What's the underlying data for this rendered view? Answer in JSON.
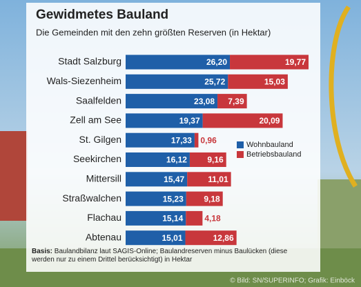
{
  "chart_data": {
    "type": "stacked_bar",
    "orientation": "horizontal",
    "title": "Gewidmetes Bauland",
    "subtitle": "Die Gemeinden mit den zehn größten Reserven (in Hektar)",
    "categories": [
      "Stadt Salzburg",
      "Wals-Siezenheim",
      "Saalfelden",
      "Zell am See",
      "St. Gilgen",
      "Seekirchen",
      "Mittersill",
      "Straßwalchen",
      "Flachau",
      "Abtenau"
    ],
    "series": [
      {
        "name": "Wohnbauland",
        "color": "#1f5fa8",
        "values": [
          26.2,
          25.72,
          23.08,
          19.37,
          17.33,
          16.12,
          15.47,
          15.23,
          15.14,
          15.01
        ],
        "value_labels": [
          "26,20",
          "25,72",
          "23,08",
          "19,37",
          "17,33",
          "16,12",
          "15,47",
          "15,23",
          "15,14",
          "15,01"
        ]
      },
      {
        "name": "Betriebsbauland",
        "color": "#c8373c",
        "values": [
          19.77,
          15.03,
          7.39,
          20.09,
          0.96,
          9.16,
          11.01,
          9.18,
          4.18,
          12.86
        ],
        "value_labels": [
          "19,77",
          "15,03",
          "7,39",
          "20,09",
          "0,96",
          "9,16",
          "11,01",
          "9,18",
          "4,18",
          "12,86"
        ]
      }
    ],
    "legend": "right",
    "note_label": "Basis:",
    "note": "Baulandbilanz laut SAGIS-Online; Baulandreserven minus Baulücken (diese werden nur zu einem Drittel berücksichtigt) in Hektar",
    "credit": "© Bild: SN/SUPERINFO; Grafik: Einböck"
  }
}
